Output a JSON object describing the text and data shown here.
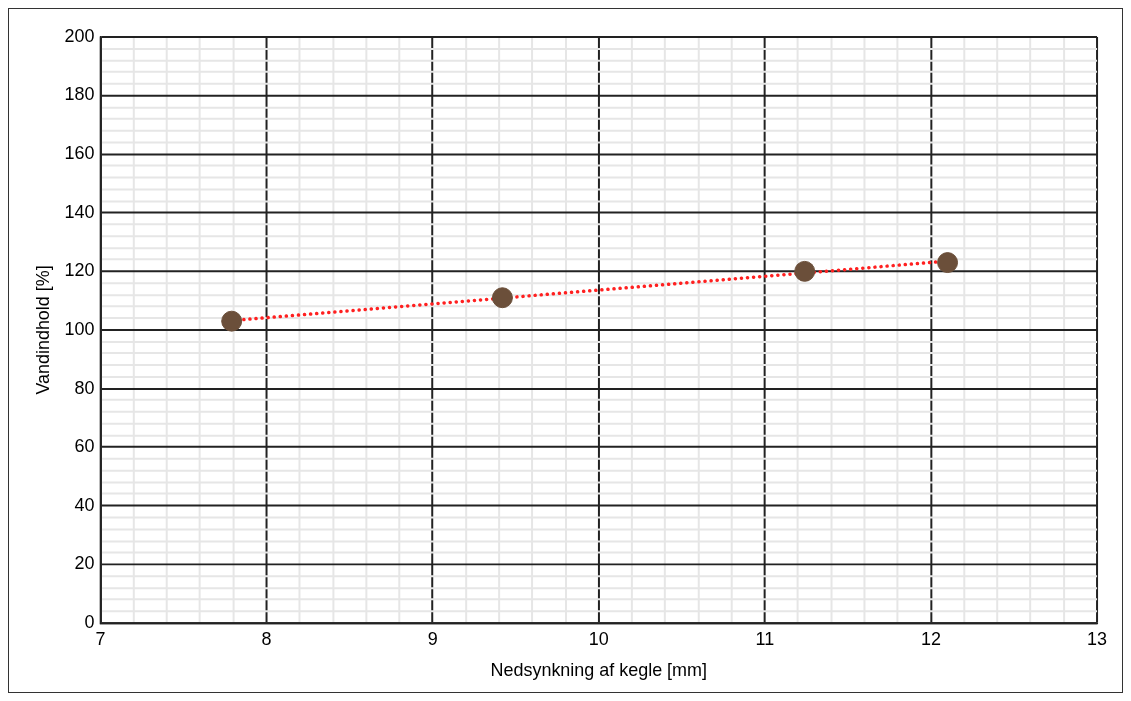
{
  "chart_data": {
    "type": "scatter",
    "xlabel": "Nedsynkning af kegle [mm]",
    "ylabel": "Vandindhold [%]",
    "series": [
      {
        "type": "scatter",
        "color": "#6b4f3a",
        "x": [
          7.79,
          9.42,
          11.24,
          12.1
        ],
        "values": [
          103,
          111,
          120,
          123
        ],
        "marker": "circle"
      },
      {
        "type": "line",
        "color": "#ff2020",
        "x": [
          7.79,
          12.1
        ],
        "values": [
          103.2,
          123.5
        ],
        "marker": "none",
        "line_style": "dotted"
      }
    ],
    "xlim": [
      7,
      13
    ],
    "ylim": [
      0,
      200
    ],
    "xticks": [
      7,
      {
        "value": 7.2,
        "label": null
      },
      {
        "value": 7.4,
        "label": null
      },
      {
        "value": 7.6,
        "label": null
      },
      {
        "value": 7.8,
        "label": null
      },
      8,
      {
        "value": 8.2,
        "label": null
      },
      {
        "value": 8.4,
        "label": null
      },
      {
        "value": 8.6,
        "label": null
      },
      {
        "value": 8.8,
        "label": null
      },
      9,
      {
        "value": 9.2,
        "label": null
      },
      {
        "value": 9.4,
        "label": null
      },
      {
        "value": 9.6,
        "label": null
      },
      {
        "value": 9.8,
        "label": null
      },
      10,
      {
        "value": 10.2,
        "label": null
      },
      {
        "value": 10.4,
        "label": null
      },
      {
        "value": 10.6,
        "label": null
      },
      {
        "value": 10.8,
        "label": null
      },
      11,
      {
        "value": 11.2,
        "label": null
      },
      {
        "value": 11.4,
        "label": null
      },
      {
        "value": 11.6,
        "label": null
      },
      {
        "value": 11.8,
        "label": null
      },
      12,
      {
        "value": 12.2,
        "label": null
      },
      {
        "value": 12.4,
        "label": null
      },
      {
        "value": 12.6,
        "label": null
      },
      {
        "value": 12.8,
        "label": null
      },
      13
    ],
    "yticks": [
      0,
      {
        "value": 4,
        "label": null
      },
      {
        "value": 8,
        "label": null
      },
      {
        "value": 12,
        "label": null
      },
      {
        "value": 16,
        "label": null
      },
      20,
      {
        "value": 24,
        "label": null
      },
      {
        "value": 28,
        "label": null
      },
      {
        "value": 32,
        "label": null
      },
      {
        "value": 36,
        "label": null
      },
      40,
      {
        "value": 44,
        "label": null
      },
      {
        "value": 48,
        "label": null
      },
      {
        "value": 52,
        "label": null
      },
      {
        "value": 56,
        "label": null
      },
      60,
      {
        "value": 64,
        "label": null
      },
      {
        "value": 68,
        "label": null
      },
      {
        "value": 72,
        "label": null
      },
      {
        "value": 76,
        "label": null
      },
      80,
      {
        "value": 84,
        "label": null
      },
      {
        "value": 88,
        "label": null
      },
      {
        "value": 92,
        "label": null
      },
      {
        "value": 96,
        "label": null
      },
      100,
      {
        "value": 104,
        "label": null
      },
      {
        "value": 108,
        "label": null
      },
      {
        "value": 112,
        "label": null
      },
      {
        "value": 116,
        "label": null
      },
      120,
      {
        "value": 124,
        "label": null
      },
      {
        "value": 128,
        "label": null
      },
      {
        "value": 132,
        "label": null
      },
      {
        "value": 136,
        "label": null
      },
      140,
      {
        "value": 144,
        "label": null
      },
      {
        "value": 148,
        "label": null
      },
      {
        "value": 152,
        "label": null
      },
      {
        "value": 156,
        "label": null
      },
      160,
      {
        "value": 164,
        "label": null
      },
      {
        "value": 168,
        "label": null
      },
      {
        "value": 172,
        "label": null
      },
      {
        "value": 176,
        "label": null
      },
      180,
      {
        "value": 184,
        "label": null
      },
      {
        "value": 188,
        "label": null
      },
      {
        "value": 192,
        "label": null
      },
      {
        "value": 196,
        "label": null
      },
      200
    ],
    "grid": true,
    "legend": false
  }
}
